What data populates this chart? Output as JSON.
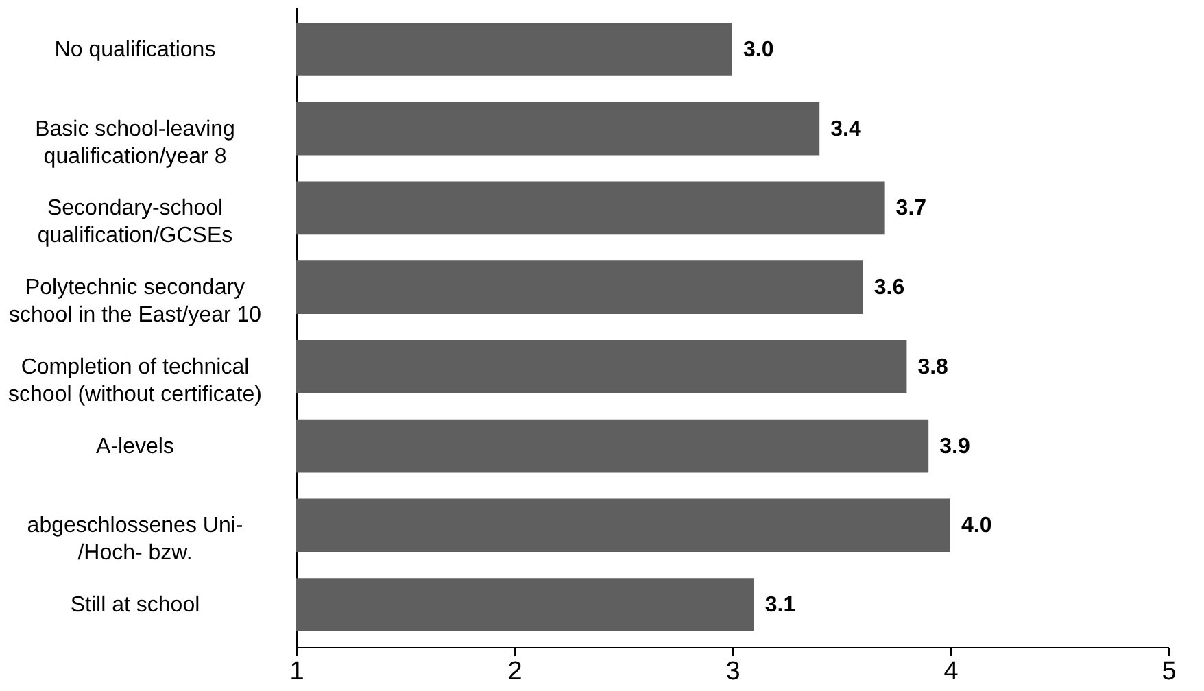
{
  "chart_data": {
    "type": "bar",
    "orientation": "horizontal",
    "categories": [
      "No qualifications",
      "Basic school-leaving\nqualification/year 8",
      "Secondary-school\nqualification/GCSEs",
      "Polytechnic secondary\nschool in the East/year 10",
      "Completion of technical\nschool (without certificate)",
      "A-levels",
      "abgeschlossenes Uni-\n/Hoch- bzw.",
      "Still at school"
    ],
    "values": [
      3.0,
      3.4,
      3.7,
      3.6,
      3.8,
      3.9,
      4.0,
      3.1
    ],
    "value_labels": [
      "3.0",
      "3.4",
      "3.7",
      "3.6",
      "3.8",
      "3.9",
      "4.0",
      "3.1"
    ],
    "color": "#5f5f5f",
    "xlim": [
      1,
      5
    ],
    "xticks": [
      1,
      2,
      3,
      4,
      5
    ],
    "grid": false
  }
}
